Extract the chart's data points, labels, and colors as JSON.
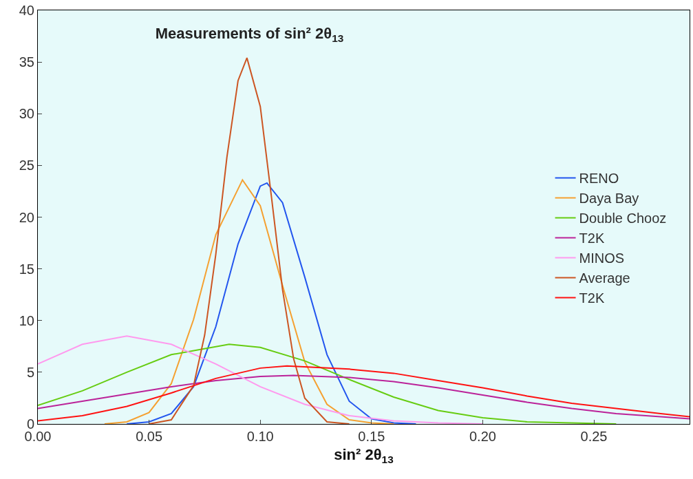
{
  "chart_data": {
    "type": "line",
    "title": "Measurements of sin² 2θ$_{13}$",
    "xlabel": "sin² 2θ$_{13}$",
    "xlim": [
      0,
      0.293
    ],
    "ylim": [
      0,
      40
    ],
    "xticks": [
      {
        "value": 0,
        "label": "0.00"
      },
      {
        "value": 0.05,
        "label": "0.05"
      },
      {
        "value": 0.1,
        "label": "0.10"
      },
      {
        "value": 0.15,
        "label": "0.15"
      },
      {
        "value": 0.2,
        "label": "0.20"
      },
      {
        "value": 0.25,
        "label": "0.25"
      }
    ],
    "yticks": [
      0,
      5,
      10,
      15,
      20,
      25,
      30,
      35,
      40
    ],
    "grid": false,
    "legend": "right",
    "marker": "none",
    "line_style": "solid",
    "series": [
      {
        "name": "RENO",
        "color": "#2255ee",
        "x": [
          0.04,
          0.05,
          0.06,
          0.07,
          0.08,
          0.09,
          0.1,
          0.103,
          0.11,
          0.12,
          0.13,
          0.14,
          0.15,
          0.16,
          0.17
        ],
        "values": [
          0,
          0.2,
          1.0,
          3.6,
          9.4,
          17.4,
          23.0,
          23.3,
          21.4,
          14.2,
          6.7,
          2.2,
          0.5,
          0.1,
          0
        ]
      },
      {
        "name": "Daya Bay",
        "color": "#f5a030",
        "x": [
          0.03,
          0.04,
          0.05,
          0.06,
          0.07,
          0.08,
          0.092,
          0.1,
          0.11,
          0.12,
          0.13,
          0.14,
          0.15,
          0.16
        ],
        "values": [
          0,
          0.2,
          1.1,
          3.9,
          10.1,
          18.3,
          23.6,
          21.1,
          13.4,
          6.0,
          1.9,
          0.4,
          0.1,
          0
        ]
      },
      {
        "name": "Double Chooz",
        "color": "#66cc11",
        "x": [
          0,
          0.02,
          0.04,
          0.06,
          0.086,
          0.1,
          0.12,
          0.14,
          0.16,
          0.18,
          0.2,
          0.22,
          0.24,
          0.26
        ],
        "values": [
          1.8,
          3.2,
          5.0,
          6.7,
          7.7,
          7.4,
          6.1,
          4.3,
          2.6,
          1.3,
          0.6,
          0.2,
          0.1,
          0
        ]
      },
      {
        "name": "T2K",
        "color": "#bb2299",
        "x": [
          0,
          0.02,
          0.04,
          0.06,
          0.08,
          0.1,
          0.115,
          0.14,
          0.16,
          0.18,
          0.2,
          0.22,
          0.24,
          0.26,
          0.28,
          0.293
        ],
        "values": [
          1.5,
          2.2,
          2.9,
          3.6,
          4.2,
          4.6,
          4.7,
          4.5,
          4.1,
          3.5,
          2.8,
          2.1,
          1.5,
          1.0,
          0.7,
          0.5
        ]
      },
      {
        "name": "MINOS",
        "color": "#ff99ee",
        "x": [
          0,
          0.02,
          0.04,
          0.06,
          0.08,
          0.1,
          0.12,
          0.14,
          0.16,
          0.18,
          0.2
        ],
        "values": [
          5.8,
          7.7,
          8.5,
          7.7,
          5.8,
          3.6,
          1.9,
          0.8,
          0.3,
          0.1,
          0
        ]
      },
      {
        "name": "Average",
        "color": "#cc5522",
        "x": [
          0.05,
          0.06,
          0.07,
          0.075,
          0.08,
          0.085,
          0.09,
          0.094,
          0.1,
          0.105,
          0.11,
          0.115,
          0.12,
          0.13,
          0.14
        ],
        "values": [
          0,
          0.4,
          3.7,
          8.6,
          16.4,
          25.8,
          33.2,
          35.4,
          30.7,
          22.0,
          13.0,
          6.3,
          2.5,
          0.2,
          0
        ]
      },
      {
        "name": "T2K",
        "color": "#ff1111",
        "x": [
          0,
          0.02,
          0.04,
          0.06,
          0.08,
          0.1,
          0.112,
          0.14,
          0.16,
          0.18,
          0.2,
          0.22,
          0.24,
          0.26,
          0.28,
          0.293
        ],
        "values": [
          0.3,
          0.8,
          1.7,
          3.0,
          4.4,
          5.4,
          5.6,
          5.3,
          4.9,
          4.2,
          3.5,
          2.7,
          2.0,
          1.5,
          1.0,
          0.7
        ]
      }
    ]
  }
}
